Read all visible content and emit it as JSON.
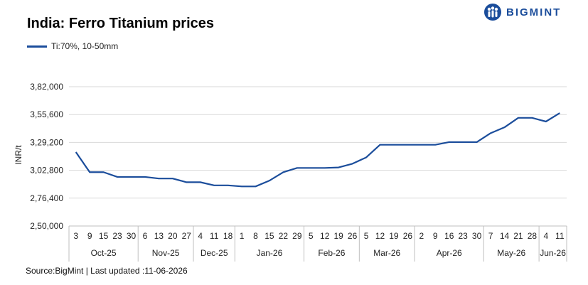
{
  "brand": {
    "name": "BIGMINT",
    "color": "#1b4d9b",
    "icon": "people-circle-icon"
  },
  "chart_data": {
    "type": "line",
    "title": "India: Ferro Titanium prices",
    "ylabel": "INR/t",
    "xlabel": "",
    "ylim": [
      250000,
      382000
    ],
    "yticks": [
      250000,
      276400,
      302800,
      329200,
      355600,
      382000
    ],
    "ytick_labels": [
      "2,50,000",
      "2,76,400",
      "3,02,800",
      "3,29,200",
      "3,55,600",
      "3,82,000"
    ],
    "grid": true,
    "legend": "top-left",
    "line_color": "#1b4d9b",
    "x": [
      "3",
      "9",
      "15",
      "23",
      "30",
      "6",
      "13",
      "20",
      "27",
      "4",
      "11",
      "18",
      "1",
      "8",
      "15",
      "22",
      "29",
      "5",
      "12",
      "19",
      "26",
      "5",
      "12",
      "19",
      "26",
      "2",
      "9",
      "16",
      "23",
      "30",
      "7",
      "14",
      "21",
      "28",
      "4",
      "11"
    ],
    "months": [
      {
        "label": "Oct-25",
        "count": 5
      },
      {
        "label": "Nov-25",
        "count": 4
      },
      {
        "label": "Dec-25",
        "count": 3
      },
      {
        "label": "Jan-26",
        "count": 5
      },
      {
        "label": "Feb-26",
        "count": 4
      },
      {
        "label": "Mar-26",
        "count": 4
      },
      {
        "label": "Apr-26",
        "count": 5
      },
      {
        "label": "May-26",
        "count": 4
      },
      {
        "label": "Jun-26",
        "count": 2
      }
    ],
    "series": [
      {
        "name": "Ti:70%, 10-50mm",
        "values": [
          320000,
          301000,
          301000,
          296500,
          296500,
          296500,
          295000,
          295000,
          291500,
          291500,
          288500,
          288500,
          287500,
          287500,
          293000,
          301000,
          305000,
          305000,
          305000,
          305500,
          309000,
          315000,
          327000,
          327000,
          327000,
          327000,
          327000,
          329500,
          329500,
          329500,
          338000,
          343500,
          352500,
          352500,
          349000,
          357000
        ]
      }
    ]
  },
  "source_text": "Source:BigMint | Last updated :11-06-2026"
}
